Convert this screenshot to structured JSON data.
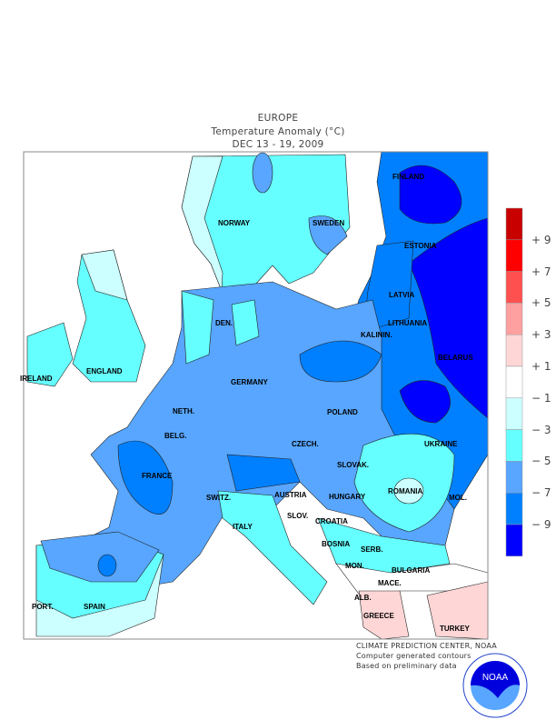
{
  "header": {
    "region": "EUROPE",
    "title": "Temperature Anomaly (°C)",
    "period": "DEC 13 - 19, 2009"
  },
  "map": {
    "countries": [
      "FINLAND",
      "NORWAY",
      "SWEDEN",
      "ESTONIA",
      "LATVIA",
      "LITHUANIA",
      "KALININ.",
      "DEN.",
      "BELARUS",
      "IRELAND",
      "ENGLAND",
      "NETH.",
      "GERMANY",
      "POLAND",
      "BELG.",
      "CZECH.",
      "UKRAINE",
      "SLOVAK.",
      "FRANCE",
      "SWITZ.",
      "AUSTRIA",
      "HUNGARY",
      "MOL.",
      "ROMANIA",
      "SLOV.",
      "CROATIA",
      "ITALY",
      "BOSNIA",
      "SERB.",
      "MON.",
      "BULGARIA",
      "MACE.",
      "ALB.",
      "PORT.",
      "SPAIN",
      "GREECE",
      "TURKEY"
    ]
  },
  "legend": {
    "unit": "°C",
    "labels": [
      "+9",
      "+7",
      "+5",
      "+3",
      "+1",
      "-1",
      "-3",
      "-5",
      "-7",
      "-9"
    ],
    "colors": [
      "#c80000",
      "#ff0000",
      "#ff5050",
      "#ffa0a0",
      "#ffd6d6",
      "#ffffff",
      "#ccffff",
      "#66ffff",
      "#58a6ff",
      "#0080ff",
      "#0000ff"
    ]
  },
  "footer": {
    "line1": "CLIMATE PREDICTION CENTER, NOAA",
    "line2": "Computer generated contours",
    "line3": "Based on preliminary data",
    "logo_text": "NOAA",
    "logo_ring": "NATIONAL OCEANIC AND ATMOSPHERIC ADMINISTRATION · U.S. DEPARTMENT OF COMMERCE"
  }
}
